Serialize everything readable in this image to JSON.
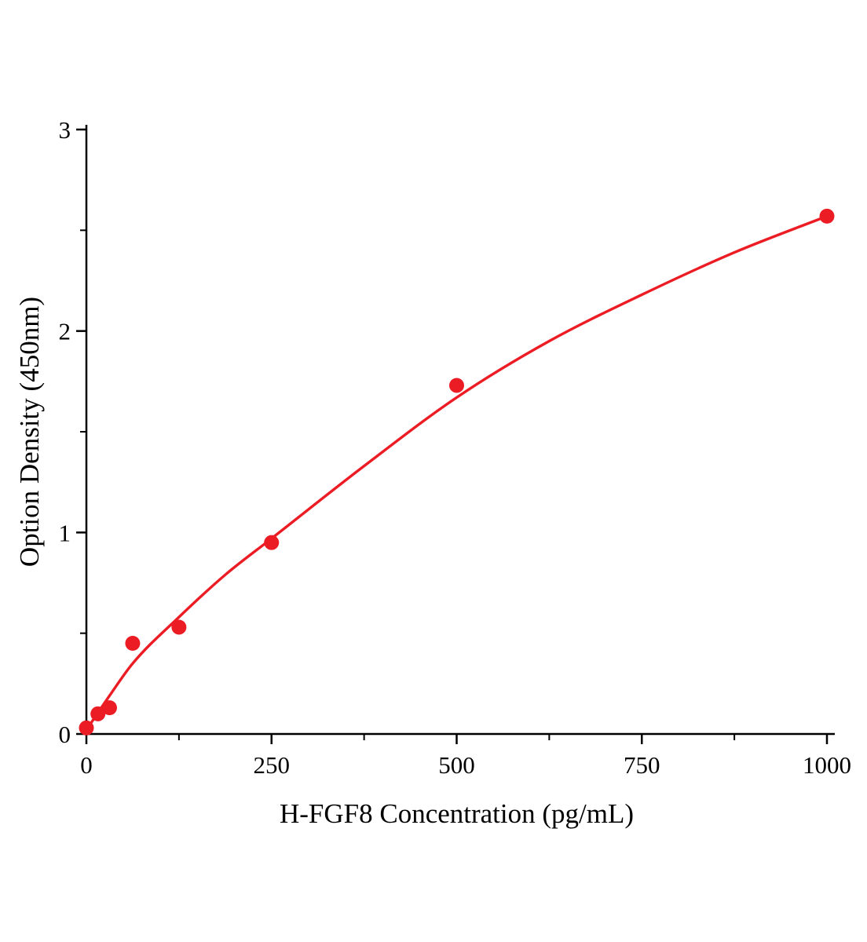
{
  "figure": {
    "background": "#ffffff",
    "accent_red": "#ec1c24",
    "axis_color": "#000000"
  },
  "chart_data": {
    "type": "scatter",
    "title": "",
    "xlabel": "H-FGF8 Concentration (pg/mL)",
    "ylabel": "Option Density (450nm)",
    "xlim": [
      0,
      1000
    ],
    "ylim": [
      0,
      3
    ],
    "x_ticks": [
      0,
      250,
      500,
      750,
      1000
    ],
    "y_ticks": [
      0,
      1,
      2,
      3
    ],
    "x_minor_ticks": [
      125,
      375,
      625,
      875
    ],
    "y_minor_ticks": [
      0.5,
      1.5,
      2.5
    ],
    "grid": false,
    "legend_position": "none",
    "point_color": "#ec1c24",
    "line_color": "#ec1c24",
    "series": [
      {
        "name": "fit-curve",
        "kind": "line",
        "points": [
          {
            "x": 0,
            "y": 0.02
          },
          {
            "x": 31.25,
            "y": 0.19
          },
          {
            "x": 62.5,
            "y": 0.35
          },
          {
            "x": 125,
            "y": 0.58
          },
          {
            "x": 187.5,
            "y": 0.79
          },
          {
            "x": 250,
            "y": 0.97
          },
          {
            "x": 375,
            "y": 1.33
          },
          {
            "x": 500,
            "y": 1.67
          },
          {
            "x": 625,
            "y": 1.95
          },
          {
            "x": 750,
            "y": 2.18
          },
          {
            "x": 875,
            "y": 2.39
          },
          {
            "x": 1000,
            "y": 2.57
          }
        ]
      },
      {
        "name": "standard-points",
        "kind": "scatter",
        "points": [
          {
            "x": 0,
            "y": 0.03
          },
          {
            "x": 15.6,
            "y": 0.1
          },
          {
            "x": 31.25,
            "y": 0.13
          },
          {
            "x": 62.5,
            "y": 0.45
          },
          {
            "x": 125,
            "y": 0.53
          },
          {
            "x": 250,
            "y": 0.95
          },
          {
            "x": 500,
            "y": 1.73
          },
          {
            "x": 1000,
            "y": 2.57
          }
        ]
      }
    ]
  }
}
